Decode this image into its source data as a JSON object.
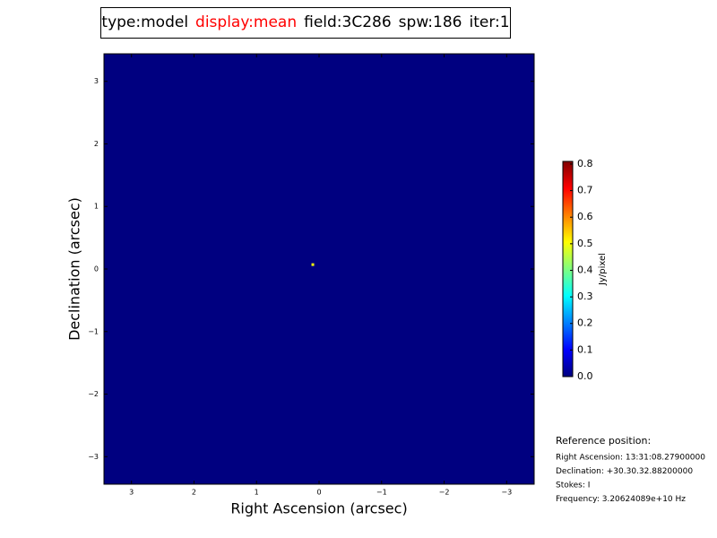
{
  "chart_data": {
    "type": "image",
    "title_parts": [
      {
        "text": "type:model",
        "color": "#000000"
      },
      {
        "text": "display:mean",
        "color": "#ff0000"
      },
      {
        "text": "field:3C286",
        "color": "#000000"
      },
      {
        "text": "spw:186",
        "color": "#000000"
      },
      {
        "text": "iter:1",
        "color": "#000000"
      }
    ],
    "x_label": "Right Ascension (arcsec)",
    "y_label": "Declination (arcsec)",
    "xlim": [
      3.44,
      -3.44
    ],
    "ylim": [
      -3.44,
      3.44
    ],
    "xticks": [
      3,
      2,
      1,
      0,
      {
        "value": -1,
        "label": "−1"
      },
      {
        "value": -2,
        "label": "−2"
      },
      {
        "value": -3,
        "label": "−3"
      }
    ],
    "yticks": [
      {
        "value": -3,
        "label": "−3"
      },
      {
        "value": -2,
        "label": "−2"
      },
      {
        "value": -1,
        "label": "−1"
      },
      0,
      1,
      2,
      3
    ],
    "colormap": "jet",
    "fill_value": 0,
    "pixels": {
      "x": [
        0.1
      ],
      "y": [
        0.07
      ],
      "values": [
        0.5
      ]
    },
    "colorbar_label": "Jy/pixel",
    "clim": [
      0,
      0.81
    ],
    "cticks": [
      {
        "value": 0,
        "label": "0.0"
      },
      {
        "value": 0.1,
        "label": "0.1"
      },
      {
        "value": 0.2,
        "label": "0.2"
      },
      {
        "value": 0.3,
        "label": "0.3"
      },
      {
        "value": 0.4,
        "label": "0.4"
      },
      {
        "value": 0.5,
        "label": "0.5"
      },
      {
        "value": 0.6,
        "label": "0.6"
      },
      {
        "value": 0.7,
        "label": "0.7"
      },
      {
        "value": 0.8,
        "label": "0.8"
      }
    ],
    "reference": {
      "heading": "Reference position:",
      "lines": [
        "Right Ascension: 13:31:08.27900000",
        "Declination: +30.30.32.88200000",
        "Stokes: I",
        "Frequency: 3.20624089e+10 Hz"
      ]
    }
  }
}
